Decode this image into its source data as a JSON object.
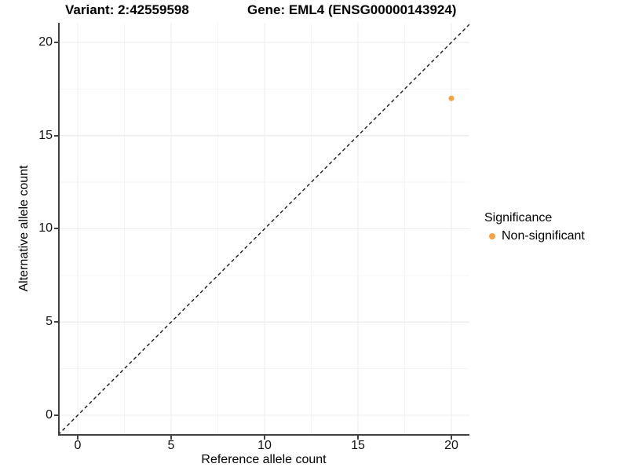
{
  "title": {
    "variant": "Variant: 2:42559598",
    "gene": "Gene: EML4 (ENSG00000143924)"
  },
  "axes": {
    "x": {
      "label": "Reference allele count",
      "ticks": [
        "0",
        "5",
        "10",
        "15",
        "20"
      ]
    },
    "y": {
      "label": "Alternative allele count",
      "ticks": [
        "0",
        "5",
        "10",
        "15",
        "20"
      ]
    }
  },
  "legend": {
    "title": "Significance",
    "items": [
      {
        "label": "Non-significant",
        "color": "#F9A242"
      }
    ]
  },
  "colors": {
    "point": "#F9A242",
    "axis_line": "#414141",
    "major_grid": "#ececec",
    "minor_grid": "#f5f5f5",
    "reference_line": "#1a1a1a",
    "background": "#ffffff"
  },
  "chart_data": {
    "type": "scatter",
    "title": "Variant: 2:42559598   Gene: EML4 (ENSG00000143924)",
    "xlabel": "Reference allele count",
    "ylabel": "Alternative allele count",
    "xlim": [
      -1.05,
      21.05
    ],
    "ylim": [
      -1.05,
      21.05
    ],
    "x_ticks": [
      0,
      5,
      10,
      15,
      20
    ],
    "y_ticks": [
      0,
      5,
      10,
      15,
      20
    ],
    "x_minor_ticks": [
      2.5,
      7.5,
      12.5,
      17.5
    ],
    "y_minor_ticks": [
      2.5,
      7.5,
      12.5,
      17.5
    ],
    "grid": true,
    "legend_position": "right",
    "reference_line": {
      "type": "identity",
      "slope": 1,
      "intercept": 0,
      "style": "dashed",
      "color": "#1a1a1a"
    },
    "series": [
      {
        "name": "Non-significant",
        "color": "#F9A242",
        "points": [
          {
            "x": 20,
            "y": 17
          }
        ]
      }
    ]
  }
}
